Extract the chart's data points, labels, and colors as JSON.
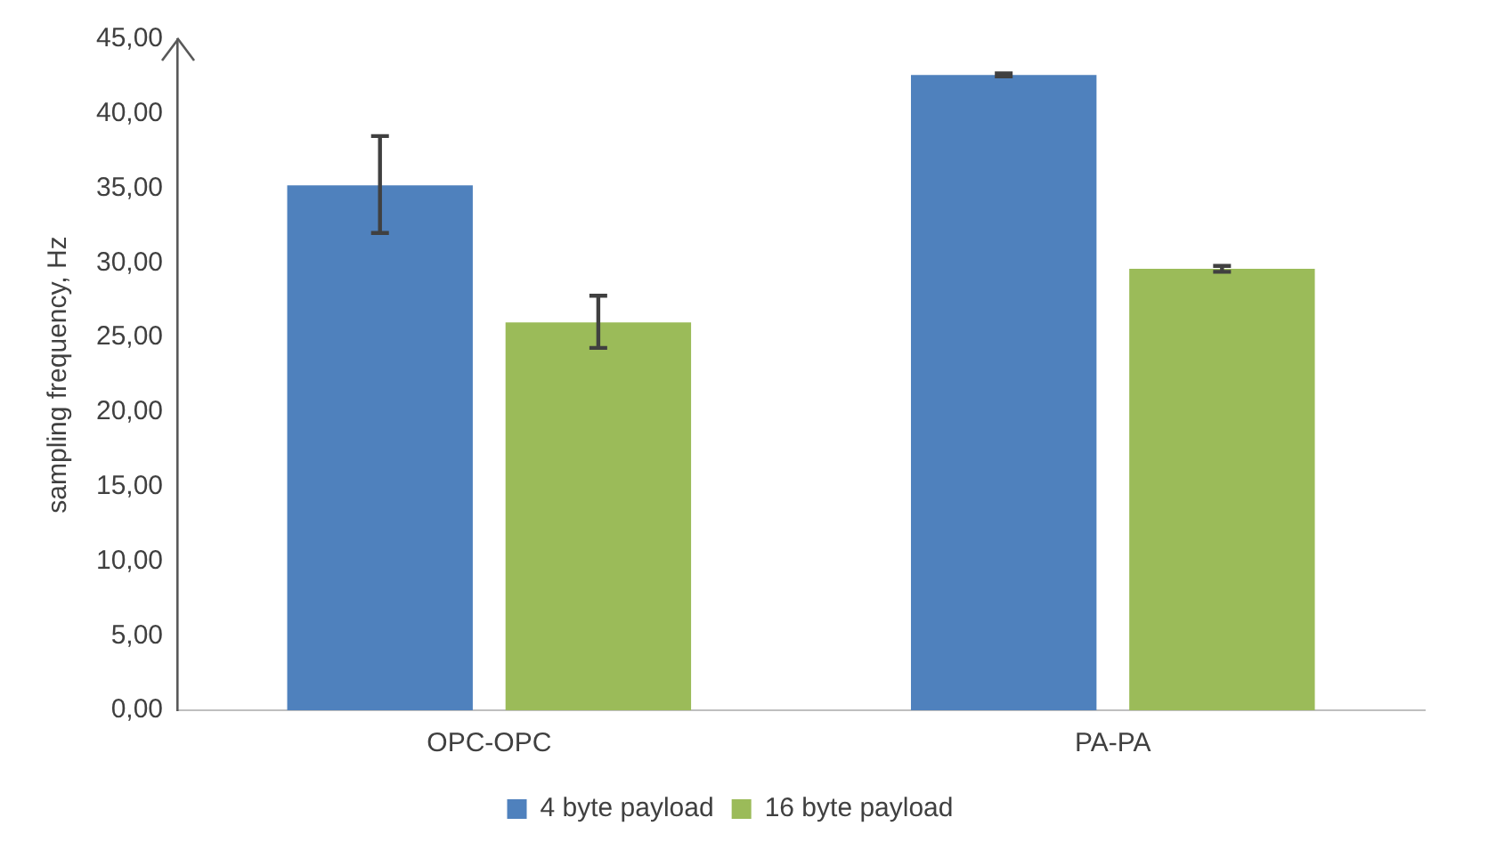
{
  "chart_data": {
    "type": "bar",
    "ylabel": "sampling frequency, Hz",
    "categories": [
      "OPC-OPC",
      "PA-PA"
    ],
    "series": [
      {
        "name": "4 byte payload",
        "color": "#4f81bd",
        "values": [
          35.2,
          42.6
        ],
        "errors": [
          [
            32.0,
            38.5
          ],
          [
            42.5,
            42.7
          ]
        ]
      },
      {
        "name": "16 byte payload",
        "color": "#9bbb59",
        "values": [
          26.0,
          29.6
        ],
        "errors": [
          [
            24.3,
            27.8
          ],
          [
            29.4,
            29.8
          ]
        ]
      }
    ],
    "ylim": [
      0,
      45
    ],
    "yticks": [
      {
        "value": 0,
        "label": "0,00"
      },
      {
        "value": 5,
        "label": "5,00"
      },
      {
        "value": 10,
        "label": "10,00"
      },
      {
        "value": 15,
        "label": "15,00"
      },
      {
        "value": 20,
        "label": "20,00"
      },
      {
        "value": 25,
        "label": "25,00"
      },
      {
        "value": 30,
        "label": "30,00"
      },
      {
        "value": 35,
        "label": "35,00"
      },
      {
        "value": 40,
        "label": "40,00"
      },
      {
        "value": 45,
        "label": "45,00"
      }
    ],
    "grid": false,
    "legend": "bottom"
  }
}
